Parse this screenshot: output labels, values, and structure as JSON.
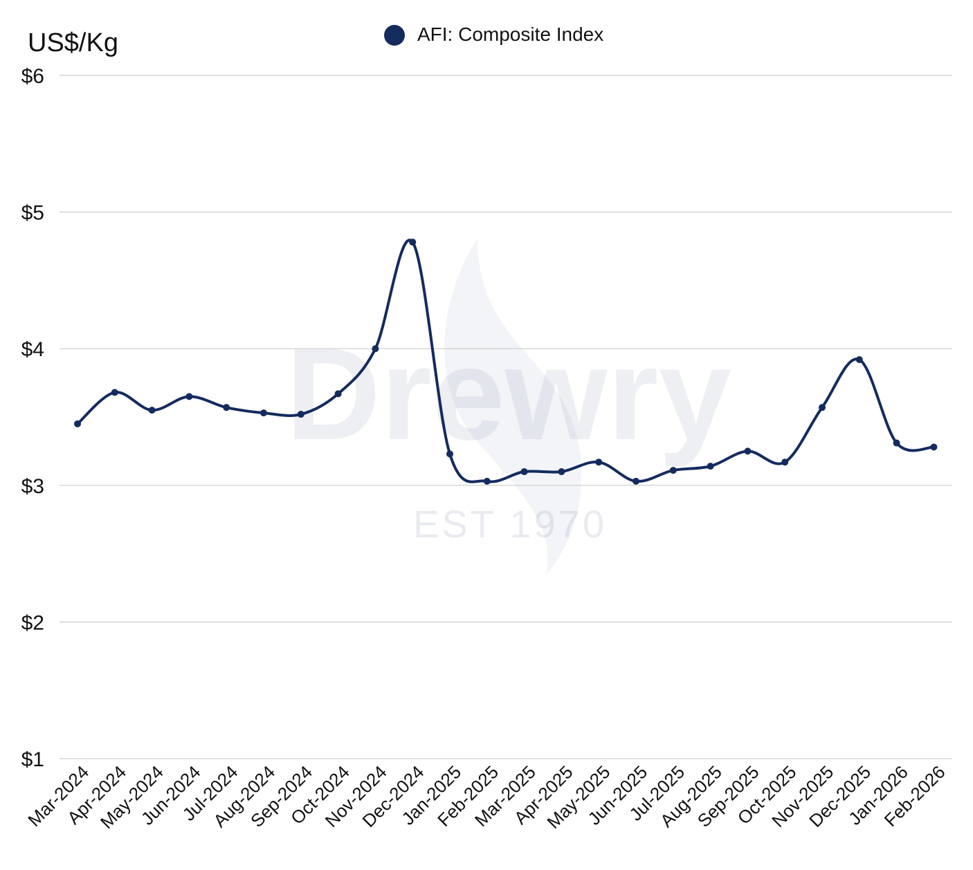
{
  "legend": {
    "label": "AFI: Composite Index",
    "color": "#142b5e"
  },
  "watermark": {
    "name": "Drewry",
    "tagline": "EST 1970"
  },
  "chart_data": {
    "type": "line",
    "ylabel": "US$/Kg",
    "ylim": [
      1,
      6
    ],
    "yticks": [
      1,
      2,
      3,
      4,
      5,
      6
    ],
    "ytick_labels": [
      "$1",
      "$2",
      "$3",
      "$4",
      "$5",
      "$6"
    ],
    "grid": true,
    "legend_position": "top-center",
    "categories": [
      "Mar-2024",
      "Apr-2024",
      "May-2024",
      "Jun-2024",
      "Jul-2024",
      "Aug-2024",
      "Sep-2024",
      "Oct-2024",
      "Nov-2024",
      "Dec-2024",
      "Jan-2025",
      "Feb-2025",
      "Mar-2025",
      "Apr-2025",
      "May-2025",
      "Jun-2025",
      "Jul-2025",
      "Aug-2025",
      "Sep-2025",
      "Oct-2025",
      "Nov-2025",
      "Dec-2025",
      "Jan-2026",
      "Feb-2026"
    ],
    "series": [
      {
        "name": "AFI: Composite Index",
        "color": "#142b5e",
        "values": [
          3.45,
          3.68,
          3.55,
          3.65,
          3.57,
          3.53,
          3.52,
          3.67,
          4.0,
          4.78,
          3.23,
          3.03,
          3.1,
          3.1,
          3.17,
          3.03,
          3.11,
          3.14,
          3.25,
          3.17,
          3.57,
          3.92,
          3.31,
          3.28
        ]
      }
    ]
  }
}
